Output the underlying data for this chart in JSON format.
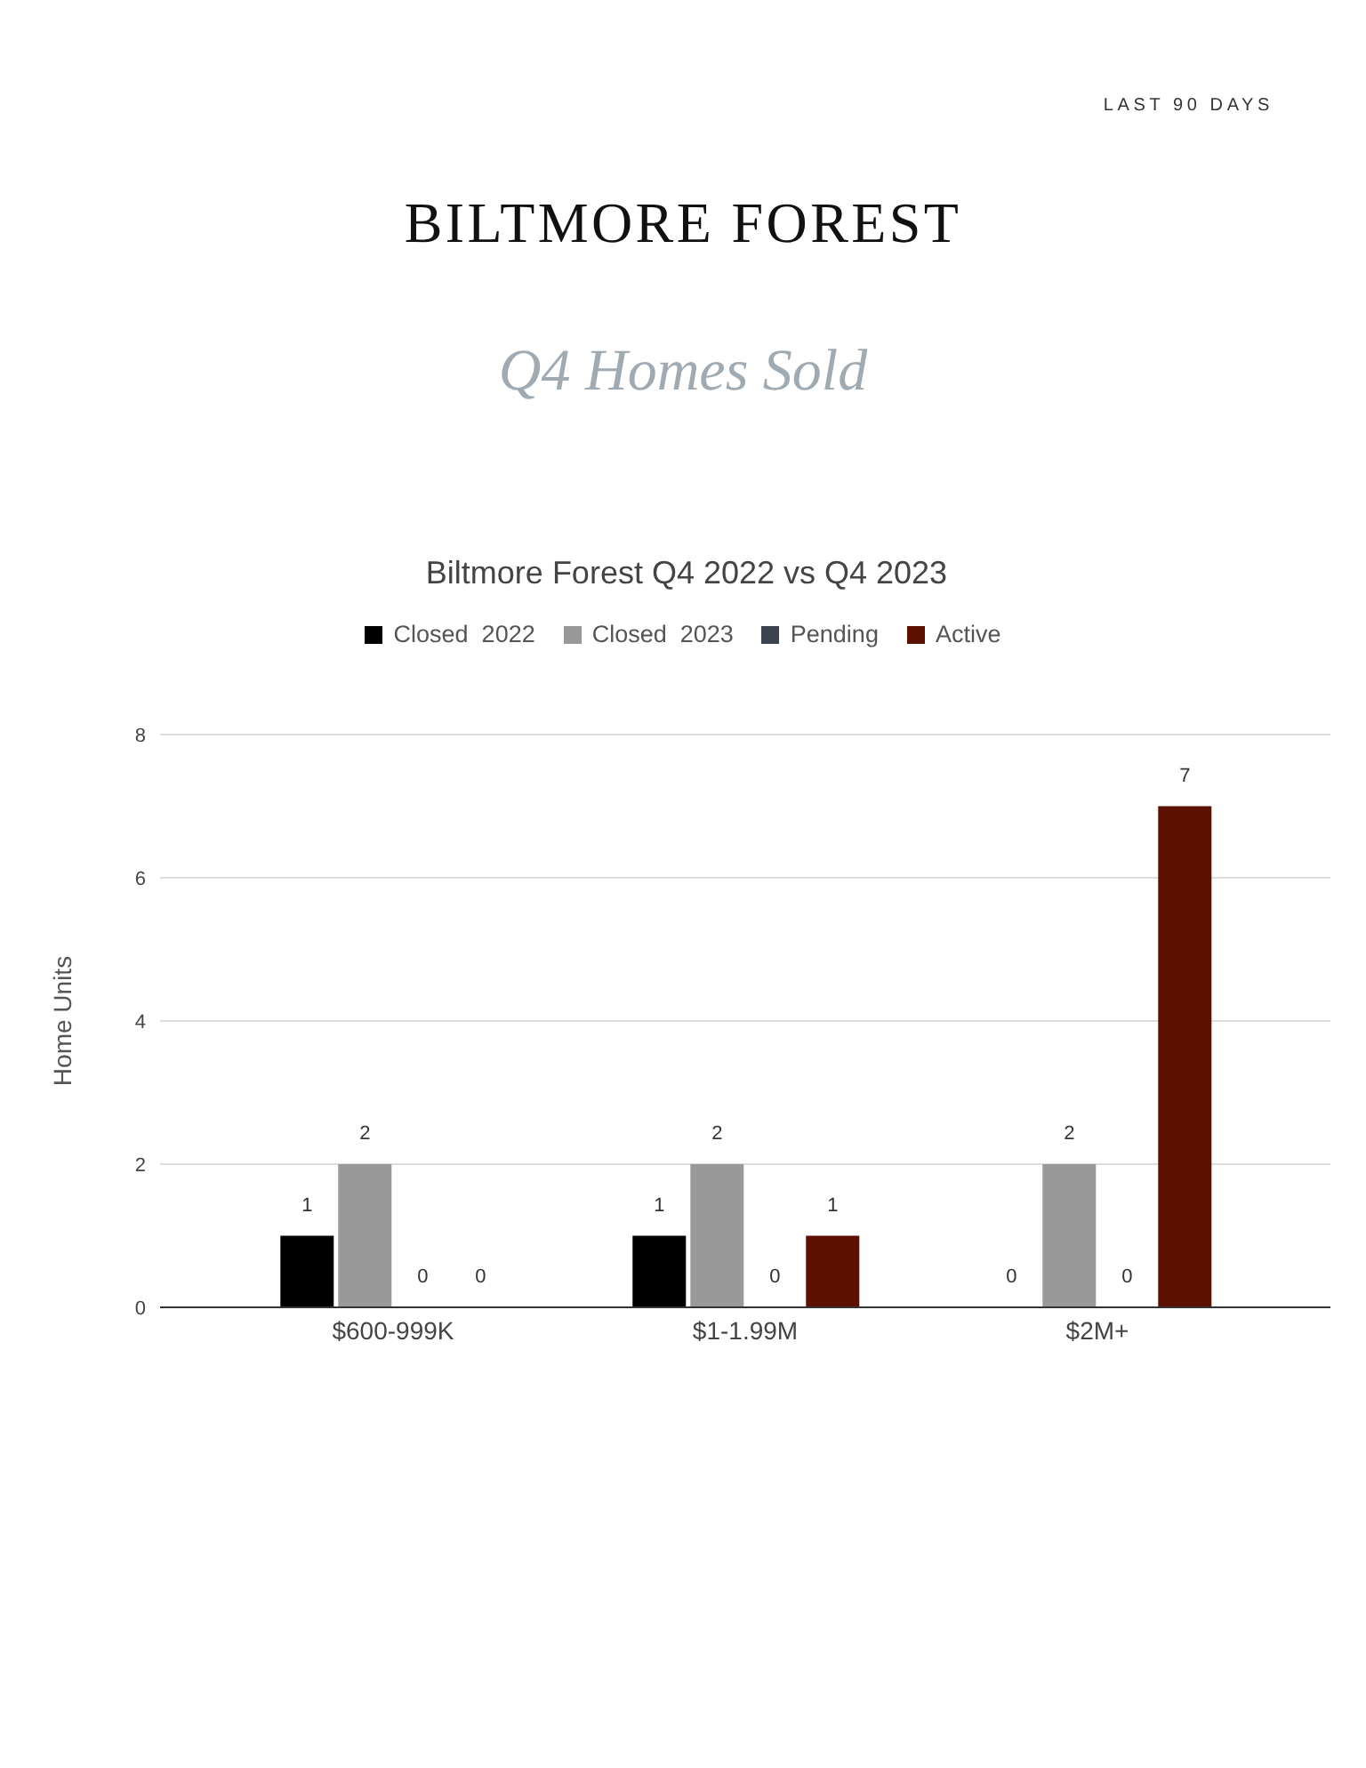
{
  "chart_data": {
    "type": "bar",
    "title": "Biltmore Forest Q4 2022 vs Q4 2023",
    "annotations": [
      "LAST 90 DAYS",
      "BILTMORE FOREST",
      "Q4 Homes Sold"
    ],
    "ylabel": "Home Units",
    "categories": [
      "$600-999K",
      "$1-1.99M",
      "$2M+"
    ],
    "series": [
      {
        "name": "Closed  2022",
        "color": "#000000",
        "values": [
          1,
          1,
          0
        ]
      },
      {
        "name": "Closed  2023",
        "color": "#999999",
        "values": [
          2,
          2,
          2
        ]
      },
      {
        "name": "Pending",
        "color": "#3c4450",
        "values": [
          0,
          0,
          0
        ]
      },
      {
        "name": "Active",
        "color": "#5b1000",
        "values": [
          0,
          1,
          7
        ]
      }
    ],
    "ylim": [
      0,
      8
    ],
    "yticks": [
      0,
      2,
      4,
      6,
      8
    ],
    "grid": "y",
    "legend": "top",
    "data_labels": true
  }
}
